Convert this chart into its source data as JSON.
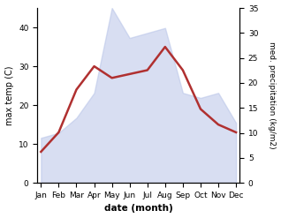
{
  "months": [
    "Jan",
    "Feb",
    "Mar",
    "Apr",
    "May",
    "Jun",
    "Jul",
    "Aug",
    "Sep",
    "Oct",
    "Nov",
    "Dec"
  ],
  "temperature": [
    8,
    13,
    24,
    30,
    27,
    28,
    29,
    35,
    29,
    19,
    15,
    13
  ],
  "precipitation": [
    9,
    10,
    13,
    18,
    35,
    29,
    30,
    31,
    18,
    17,
    18,
    12
  ],
  "temp_color": "#b03030",
  "precip_color": "#b8c4e8",
  "left_ylabel": "max temp (C)",
  "right_ylabel": "med. precipitation (kg/m2)",
  "xlabel": "date (month)",
  "left_ylim": [
    0,
    45
  ],
  "right_ylim": [
    0,
    35
  ],
  "left_yticks": [
    0,
    10,
    20,
    30,
    40
  ],
  "right_yticks": [
    0,
    5,
    10,
    15,
    20,
    25,
    30,
    35
  ],
  "temp_linewidth": 1.8,
  "precip_alpha": 0.55
}
